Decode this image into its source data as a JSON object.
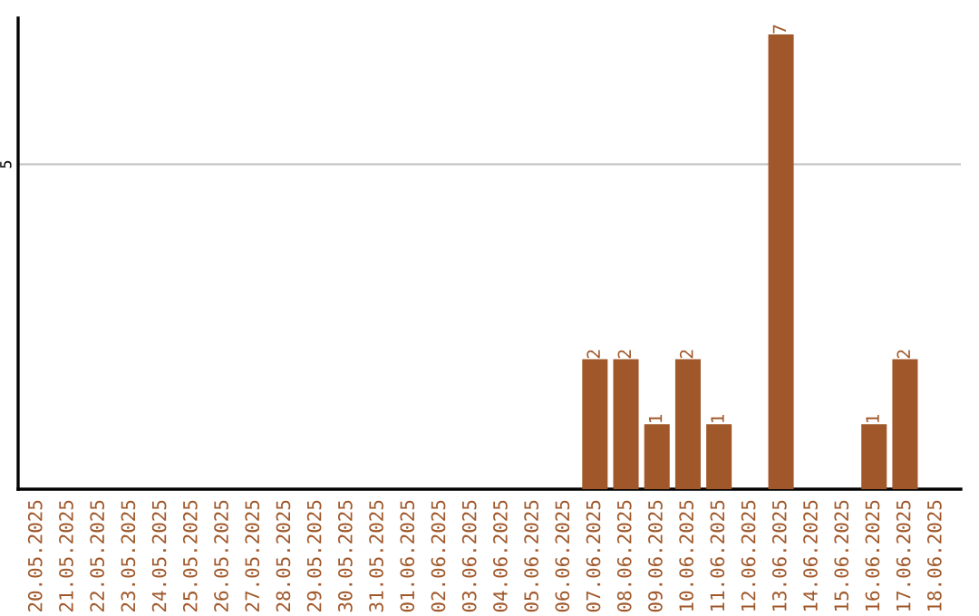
{
  "chart_data": {
    "type": "bar",
    "categories": [
      "20.05.2025",
      "21.05.2025",
      "22.05.2025",
      "23.05.2025",
      "24.05.2025",
      "25.05.2025",
      "26.05.2025",
      "27.05.2025",
      "28.05.2025",
      "29.05.2025",
      "30.05.2025",
      "31.05.2025",
      "01.06.2025",
      "02.06.2025",
      "03.06.2025",
      "04.06.2025",
      "05.06.2025",
      "06.06.2025",
      "07.06.2025",
      "08.06.2025",
      "09.06.2025",
      "10.06.2025",
      "11.06.2025",
      "12.06.2025",
      "13.06.2025",
      "14.06.2025",
      "15.06.2025",
      "16.06.2025",
      "17.06.2025",
      "18.06.2025"
    ],
    "values": [
      null,
      null,
      null,
      null,
      null,
      null,
      null,
      null,
      null,
      null,
      null,
      null,
      null,
      null,
      null,
      null,
      null,
      null,
      2,
      2,
      1,
      2,
      1,
      null,
      7,
      null,
      null,
      1,
      2,
      null
    ],
    "data_labels": true,
    "color": "#a0582a",
    "ref_lines": [
      {
        "axis": "y",
        "value": 5,
        "label": "5",
        "color": "#c8c8c8"
      }
    ]
  }
}
